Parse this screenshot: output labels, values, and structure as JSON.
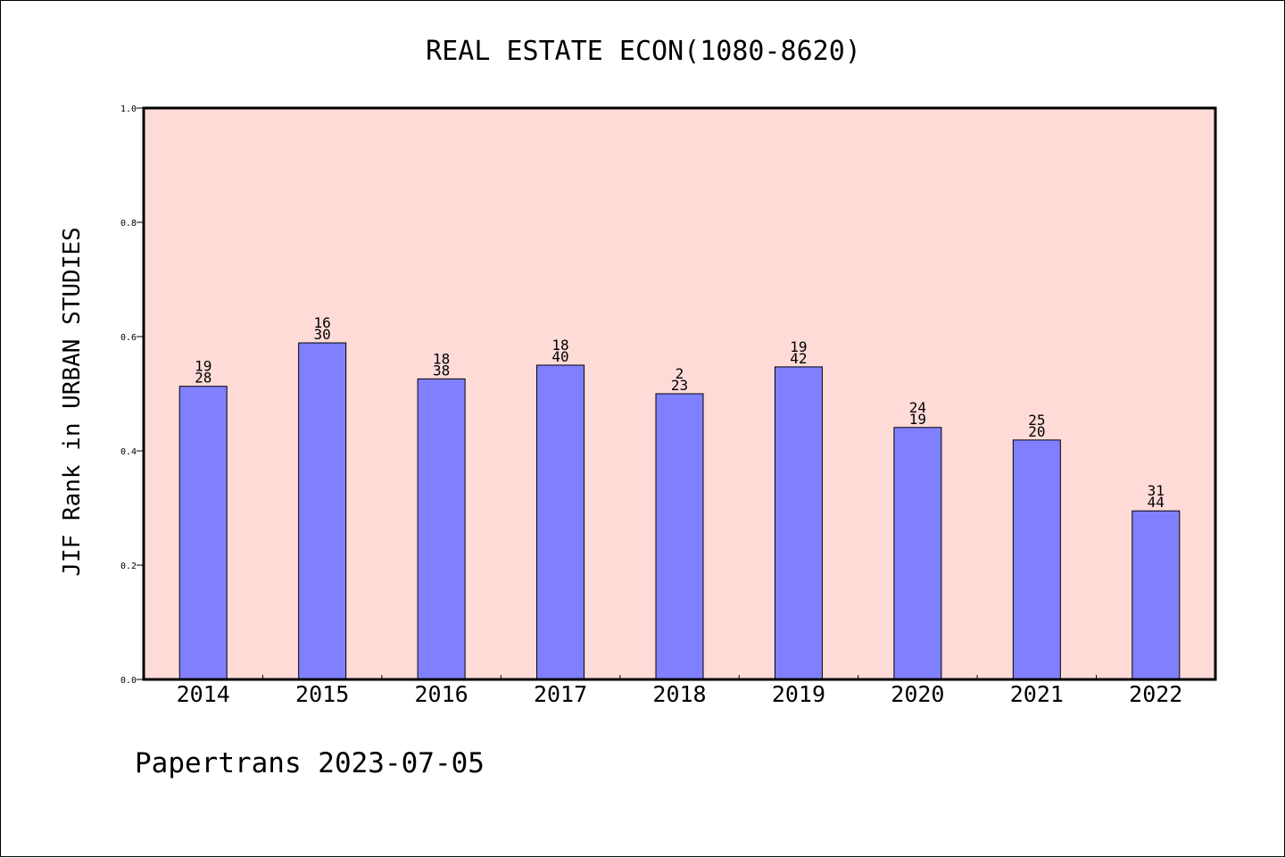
{
  "chart_data": {
    "type": "bar",
    "title": "REAL ESTATE ECON(1080-8620)",
    "ylabel": "JIF Rank in URBAN STUDIES",
    "xlabel": "",
    "ylim": [
      0,
      1.0
    ],
    "yticks": [
      "0.0",
      "0.2",
      "0.4",
      "0.6",
      "0.8",
      "1.0"
    ],
    "grid": false,
    "categories": [
      "2014",
      "2015",
      "2016",
      "2017",
      "2018",
      "2019",
      "2020",
      "2021",
      "2022"
    ],
    "values": [
      0.513,
      0.589,
      0.526,
      0.55,
      0.5,
      0.547,
      0.441,
      0.419,
      0.295
    ],
    "label_top": [
      "19",
      "16",
      "18",
      "18",
      "2",
      "19",
      "24",
      "25",
      "31"
    ],
    "label_bottom": [
      "28",
      "30",
      "38",
      "40",
      "23",
      "42",
      "19",
      "20",
      "44"
    ]
  },
  "footer": "Papertrans 2023-07-05",
  "colors": {
    "plot_background": "#ffdbd8",
    "bar_fill": "#8080ff",
    "bar_stroke": "#000000"
  }
}
